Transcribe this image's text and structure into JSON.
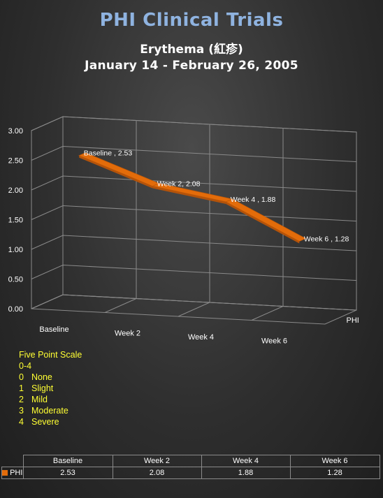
{
  "header": {
    "title": "PHI Clinical Trials",
    "subtitle": "Erythema (紅疹)",
    "date_range": "January 14 - February 26, 2005"
  },
  "chart_data": {
    "type": "line",
    "style": "3d-ribbon",
    "categories": [
      "Baseline",
      "Week 2",
      "Week 4",
      "Week 6"
    ],
    "series": [
      {
        "name": "PHI",
        "values": [
          2.53,
          2.08,
          1.88,
          1.28
        ],
        "color": "#e36c0a",
        "data_labels": [
          "Baseline , 2.53",
          "Week 2, 2.08",
          "Week 4 , 1.88",
          "Week 6 , 1.28"
        ]
      }
    ],
    "y_ticks": [
      "0.00",
      "0.50",
      "1.00",
      "1.50",
      "2.00",
      "2.50",
      "3.00"
    ],
    "ylim": [
      0,
      3
    ],
    "depth_axis_label": "PHI",
    "grid": true
  },
  "scale_legend": {
    "title": "Five Point Scale",
    "range": "0-4",
    "items": [
      {
        "num": "0",
        "label": "None"
      },
      {
        "num": "1",
        "label": "Slight"
      },
      {
        "num": "2",
        "label": "Mild"
      },
      {
        "num": "3",
        "label": "Moderate"
      },
      {
        "num": "4",
        "label": "Severe"
      }
    ]
  },
  "data_table": {
    "headers": [
      "Baseline",
      "Week 2",
      "Week 4",
      "Week 6"
    ],
    "row_label": "PHI",
    "row_values": [
      "2.53",
      "2.08",
      "1.88",
      "1.28"
    ]
  },
  "colors": {
    "title": "#8fb3e0",
    "series": "#e36c0a",
    "scale_text": "#ffff33",
    "grid": "#8a8a8a"
  }
}
